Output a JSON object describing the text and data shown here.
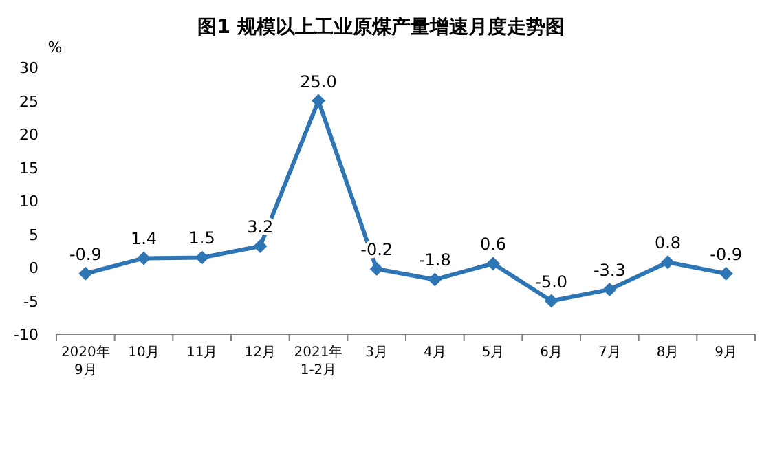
{
  "chart_data": {
    "type": "line",
    "title": "图1  规模以上工业原煤产量增速月度走势图",
    "ylabel": "%",
    "categories": [
      "2020年\n9月",
      "10月",
      "11月",
      "12月",
      "2021年\n1-2月",
      "3月",
      "4月",
      "5月",
      "6月",
      "7月",
      "8月",
      "9月"
    ],
    "series": [
      {
        "color": "#2e75b6",
        "values": [
          -0.9,
          1.4,
          1.5,
          3.2,
          25.0,
          -0.2,
          -1.8,
          0.6,
          -5.0,
          -3.3,
          0.8,
          -0.9
        ],
        "value_labels": [
          "-0.9",
          "1.4",
          "1.5",
          "3.2",
          "25.0",
          "-0.2",
          "-1.8",
          "0.6",
          "-5.0",
          "-3.3",
          "0.8",
          "-0.9"
        ]
      }
    ],
    "ylim": [
      -10,
      30
    ],
    "yticks": [
      -10,
      -5,
      0,
      5,
      10,
      15,
      20,
      25,
      30
    ],
    "marker": "diamond",
    "grid": false
  }
}
